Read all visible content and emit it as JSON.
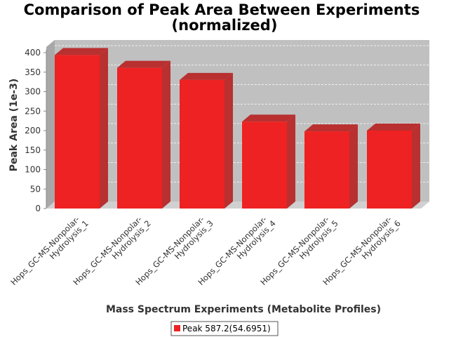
{
  "chart_data": {
    "type": "bar",
    "title_line1": "Comparison of Peak Area Between Experiments",
    "title_line2": "(normalized)",
    "xlabel": "Mass Spectrum Experiments (Metabolite Profiles)",
    "ylabel": "Peak Area (1e-3)",
    "categories": [
      [
        "Hops_GC-MS-Nonpolar-",
        "Hydrolysis_1"
      ],
      [
        "Hops_GC-MS-Nonpolar-",
        "Hydrolysis_2"
      ],
      [
        "Hops_GC-MS-Nonpolar-",
        "Hydrolysis_3"
      ],
      [
        "Hops_GC-MS-Nonpolar-",
        "Hydrolysis_4"
      ],
      [
        "Hops_GC-MS-Nonpolar-",
        "Hydrolysis_5"
      ],
      [
        "Hops_GC-MS-Nonpolar-",
        "Hydrolysis_6"
      ]
    ],
    "series": [
      {
        "name": "Peak 587.2(54.6951)",
        "values": [
          394,
          361,
          330,
          223,
          198,
          200
        ],
        "color": "#ee2222"
      }
    ],
    "ylim": [
      0,
      400
    ],
    "yticks": [
      "0",
      "50",
      "100",
      "150",
      "200",
      "250",
      "300",
      "350",
      "400"
    ],
    "grid": true,
    "legend_position": "bottom",
    "plot_background": "#c0c0c0"
  }
}
